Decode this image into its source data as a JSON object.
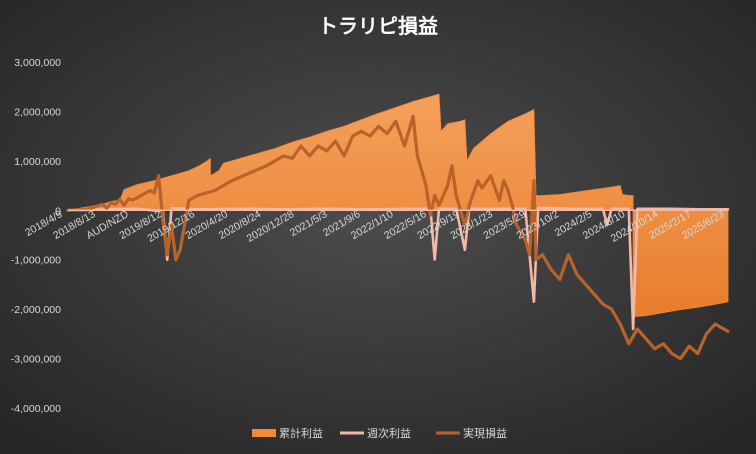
{
  "chart_data": {
    "type": "area",
    "title": "トラリピ損益",
    "xlabel": "",
    "ylabel": "",
    "ylim": [
      -4000000,
      3000000
    ],
    "ytick_step": 1000000,
    "ytick_labels": [
      "3,000,000",
      "2,000,000",
      "1,000,000",
      "0",
      "-1,000,000",
      "-2,000,000",
      "-3,000,000",
      "-4,000,000"
    ],
    "x_tick_labels": [
      "2018/4/9",
      "2018/8/13",
      "AUD/NZD",
      "2019/8/12",
      "2019/12/16",
      "2020/4/20",
      "2020/8/24",
      "2020/12/28",
      "2021/5/3",
      "2021/9/6",
      "2022/1/10",
      "2022/5/16",
      "2022/9/19",
      "2023/1/23",
      "2023/5/29",
      "2023/10/2",
      "2024/2/5",
      "2024/6/10",
      "2024/10/14",
      "2025/2/17",
      "2025/6/23"
    ],
    "legend_position": "bottom",
    "grid": false,
    "colors": {
      "background_start": "#4d4d4d",
      "background_end": "#262626",
      "cumulative": "#f08a3a",
      "weekly": "#f4b8a6",
      "realized": "#b9632a"
    },
    "series": [
      {
        "name": "累計利益",
        "style": "area",
        "points": [
          [
            0,
            0
          ],
          [
            4,
            60000
          ],
          [
            8,
            120000
          ],
          [
            10,
            180000
          ],
          [
            12,
            200000
          ],
          [
            13,
            420000
          ],
          [
            16,
            520000
          ],
          [
            20,
            600000
          ],
          [
            24,
            700000
          ],
          [
            28,
            800000
          ],
          [
            30,
            880000
          ],
          [
            32,
            980000
          ],
          [
            33,
            1050000
          ],
          [
            33,
            700000
          ],
          [
            35,
            800000
          ],
          [
            36,
            950000
          ],
          [
            40,
            1050000
          ],
          [
            44,
            1150000
          ],
          [
            48,
            1250000
          ],
          [
            52,
            1380000
          ],
          [
            56,
            1480000
          ],
          [
            60,
            1600000
          ],
          [
            64,
            1700000
          ],
          [
            68,
            1830000
          ],
          [
            72,
            1960000
          ],
          [
            76,
            2080000
          ],
          [
            80,
            2200000
          ],
          [
            84,
            2300000
          ],
          [
            86,
            2350000
          ],
          [
            86.5,
            1600000
          ],
          [
            88,
            1750000
          ],
          [
            91,
            1800000
          ],
          [
            92,
            1830000
          ],
          [
            92.5,
            1000000
          ],
          [
            94,
            1250000
          ],
          [
            98,
            1550000
          ],
          [
            102,
            1800000
          ],
          [
            106,
            1950000
          ],
          [
            108,
            2040000
          ],
          [
            108.5,
            300000
          ],
          [
            110,
            300000
          ],
          [
            114,
            320000
          ],
          [
            118,
            370000
          ],
          [
            122,
            420000
          ],
          [
            126,
            470000
          ],
          [
            128,
            500000
          ],
          [
            128.5,
            320000
          ],
          [
            130,
            300000
          ],
          [
            131,
            300000
          ],
          [
            131,
            -2150000
          ],
          [
            134,
            -2130000
          ],
          [
            138,
            -2070000
          ],
          [
            142,
            -2010000
          ],
          [
            146,
            -1960000
          ],
          [
            150,
            -1900000
          ],
          [
            152,
            -1870000
          ],
          [
            153,
            -1850000
          ]
        ]
      },
      {
        "name": "週次利益",
        "style": "line",
        "points": [
          [
            0,
            0
          ],
          [
            10,
            20000
          ],
          [
            16,
            30000
          ],
          [
            22,
            -20000
          ],
          [
            23,
            -1000000
          ],
          [
            24,
            40000
          ],
          [
            30,
            20000
          ],
          [
            40,
            30000
          ],
          [
            50,
            20000
          ],
          [
            60,
            30000
          ],
          [
            70,
            20000
          ],
          [
            80,
            30000
          ],
          [
            84,
            30000
          ],
          [
            85,
            -1000000
          ],
          [
            86,
            30000
          ],
          [
            90,
            30000
          ],
          [
            92,
            -800000
          ],
          [
            93,
            30000
          ],
          [
            102,
            30000
          ],
          [
            106,
            30000
          ],
          [
            108,
            -1850000
          ],
          [
            109,
            50000
          ],
          [
            116,
            30000
          ],
          [
            124,
            30000
          ],
          [
            125,
            -300000
          ],
          [
            126,
            30000
          ],
          [
            130,
            30000
          ],
          [
            131,
            -2400000
          ],
          [
            132,
            30000
          ],
          [
            140,
            30000
          ],
          [
            146,
            20000
          ],
          [
            153,
            20000
          ]
        ]
      },
      {
        "name": "実現損益",
        "style": "line",
        "points": [
          [
            0,
            0
          ],
          [
            4,
            20000
          ],
          [
            6,
            60000
          ],
          [
            8,
            120000
          ],
          [
            9,
            40000
          ],
          [
            10,
            160000
          ],
          [
            11,
            120000
          ],
          [
            12,
            220000
          ],
          [
            13,
            100000
          ],
          [
            14,
            230000
          ],
          [
            15,
            210000
          ],
          [
            17,
            300000
          ],
          [
            19,
            400000
          ],
          [
            20,
            350000
          ],
          [
            21,
            700000
          ],
          [
            22,
            -200000
          ],
          [
            23,
            -900000
          ],
          [
            24,
            -300000
          ],
          [
            25,
            -1000000
          ],
          [
            26,
            -800000
          ],
          [
            27,
            -300000
          ],
          [
            28,
            200000
          ],
          [
            30,
            300000
          ],
          [
            34,
            400000
          ],
          [
            38,
            600000
          ],
          [
            42,
            750000
          ],
          [
            46,
            900000
          ],
          [
            50,
            1100000
          ],
          [
            52,
            1050000
          ],
          [
            54,
            1300000
          ],
          [
            56,
            1100000
          ],
          [
            58,
            1300000
          ],
          [
            60,
            1200000
          ],
          [
            62,
            1400000
          ],
          [
            64,
            1100000
          ],
          [
            66,
            1500000
          ],
          [
            68,
            1600000
          ],
          [
            70,
            1500000
          ],
          [
            72,
            1700000
          ],
          [
            74,
            1550000
          ],
          [
            76,
            1800000
          ],
          [
            78,
            1300000
          ],
          [
            80,
            1900000
          ],
          [
            81,
            1100000
          ],
          [
            82,
            800000
          ],
          [
            83,
            500000
          ],
          [
            84,
            -100000
          ],
          [
            85,
            300000
          ],
          [
            86,
            100000
          ],
          [
            88,
            500000
          ],
          [
            89,
            900000
          ],
          [
            90,
            300000
          ],
          [
            92,
            -300000
          ],
          [
            93,
            100000
          ],
          [
            95,
            600000
          ],
          [
            96,
            450000
          ],
          [
            98,
            700000
          ],
          [
            100,
            200000
          ],
          [
            101,
            600000
          ],
          [
            102,
            400000
          ],
          [
            103,
            100000
          ],
          [
            104,
            -300000
          ],
          [
            106,
            -600000
          ],
          [
            107,
            -900000
          ],
          [
            108,
            600000
          ],
          [
            108.5,
            -1000000
          ],
          [
            110,
            -900000
          ],
          [
            112,
            -1200000
          ],
          [
            114,
            -1400000
          ],
          [
            116,
            -900000
          ],
          [
            118,
            -1300000
          ],
          [
            120,
            -1500000
          ],
          [
            122,
            -1700000
          ],
          [
            124,
            -1900000
          ],
          [
            126,
            -2000000
          ],
          [
            128,
            -2300000
          ],
          [
            130,
            -2700000
          ],
          [
            132,
            -2400000
          ],
          [
            134,
            -2600000
          ],
          [
            136,
            -2800000
          ],
          [
            138,
            -2700000
          ],
          [
            140,
            -2900000
          ],
          [
            142,
            -3000000
          ],
          [
            144,
            -2750000
          ],
          [
            146,
            -2900000
          ],
          [
            148,
            -2500000
          ],
          [
            150,
            -2300000
          ],
          [
            152,
            -2400000
          ],
          [
            153,
            -2450000
          ]
        ]
      }
    ]
  }
}
